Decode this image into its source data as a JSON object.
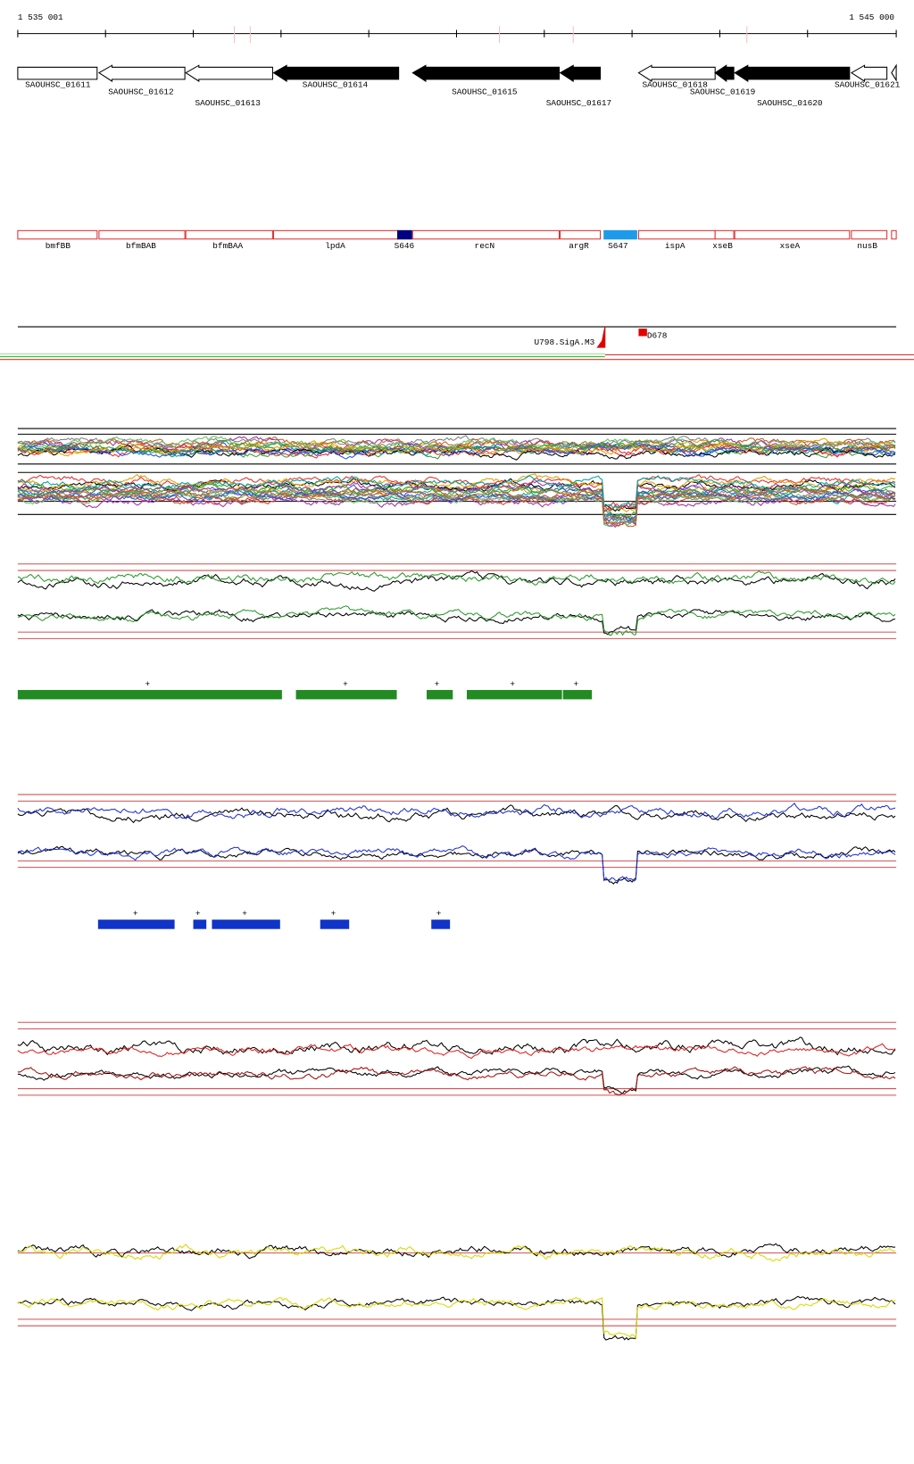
{
  "ruler": {
    "start_label": "1 535 001",
    "end_label": "1 545 000"
  },
  "genes": [
    {
      "label": "SAOUHSC_01611"
    },
    {
      "label": "SAOUHSC_01612"
    },
    {
      "label": "SAOUHSC_01613"
    },
    {
      "label": "SAOUHSC_01614"
    },
    {
      "label": "SAOUHSC_01615"
    },
    {
      "label": "SAOUHSC_01617"
    },
    {
      "label": "SAOUHSC_01618"
    },
    {
      "label": "SAOUHSC_01619"
    },
    {
      "label": "SAOUHSC_01620"
    },
    {
      "label": "SAOUHSC_01621"
    }
  ],
  "features": [
    {
      "label": "bmfBB"
    },
    {
      "label": "bfmBAB"
    },
    {
      "label": "bfmBAA"
    },
    {
      "label": "lpdA"
    },
    {
      "label": "S646"
    },
    {
      "label": "recN"
    },
    {
      "label": "argR"
    },
    {
      "label": "S647"
    },
    {
      "label": "ispA"
    },
    {
      "label": "xseB"
    },
    {
      "label": "xseA"
    },
    {
      "label": "nusB"
    }
  ],
  "tss": [
    {
      "label": "U798.SigA.M3"
    },
    {
      "label": "D678"
    }
  ],
  "green_segments": [
    {
      "label": "+"
    },
    {
      "label": "+"
    },
    {
      "label": "+"
    },
    {
      "label": "+"
    },
    {
      "label": "+"
    }
  ],
  "blue_segments": [
    {
      "label": "+"
    },
    {
      "label": "+"
    },
    {
      "label": "+"
    },
    {
      "label": "+"
    },
    {
      "label": "+"
    }
  ]
}
